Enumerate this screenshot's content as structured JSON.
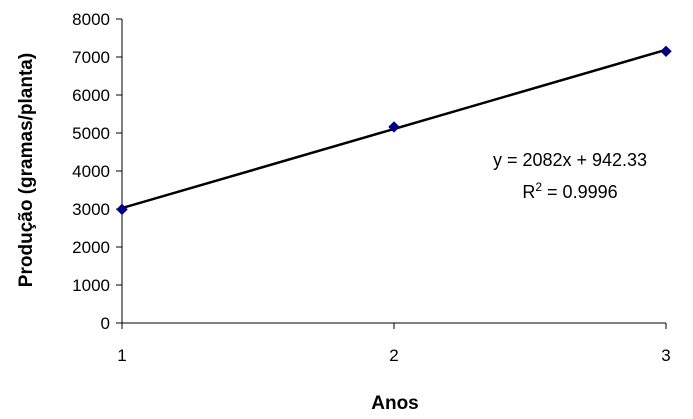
{
  "chart_data": {
    "type": "scatter",
    "title": "",
    "xlabel": "Anos",
    "ylabel": "Produção (gramas/planta)",
    "xlim": [
      1,
      3
    ],
    "ylim": [
      0,
      8000
    ],
    "x_ticks": [
      "1",
      "2",
      "3"
    ],
    "y_ticks": [
      "0",
      "1000",
      "2000",
      "3000",
      "4000",
      "5000",
      "6000",
      "7000",
      "8000"
    ],
    "grid": false,
    "legend": "none",
    "series": [
      {
        "x": [
          1,
          2,
          3
        ],
        "y": [
          2990,
          5160,
          7150
        ],
        "marker": "diamond",
        "color": "#000080"
      }
    ],
    "trendline": {
      "type": "linear",
      "slope": 2082,
      "intercept": 942.33,
      "color": "#000000"
    },
    "annotations": {
      "equation": "y = 2082x + 942.33",
      "r2_prefix": "R",
      "r2_sup": "2",
      "r2_value": " = 0.9996"
    }
  }
}
